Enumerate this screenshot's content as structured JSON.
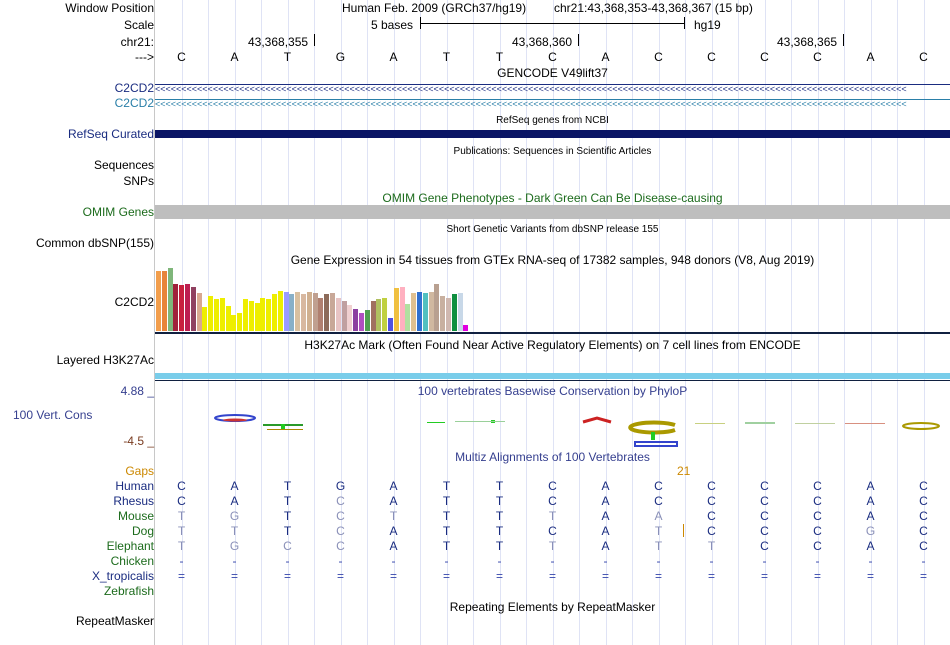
{
  "colors": {
    "gencode_blue": "#1a2c80",
    "gencode_teal": "#2a7fa8",
    "refseq": "#0a1565",
    "omim_label": "#1c6b1c",
    "omim_bar": "#bebebe",
    "h3k27ac": "#79cdea",
    "phylop_label": "#353f8f",
    "phylop_neg": "#7a3c20",
    "gaps": "#cc8800",
    "grid": "#dfe3f5"
  },
  "header": {
    "window_position_label": "Window Position",
    "assembly": "Human Feb. 2009 (GRCh37/hg19)",
    "position": "chr21:43,368,353-43,368,367 (15 bp)",
    "scale_label": "Scale",
    "scale_value": "5 bases",
    "scale_genome": "hg19",
    "chr_label": "chr21:",
    "coords": [
      "43,368,355",
      "43,368,360",
      "43,368,365"
    ],
    "strand_label": "--->"
  },
  "bases": [
    "C",
    "A",
    "T",
    "G",
    "A",
    "T",
    "T",
    "C",
    "A",
    "C",
    "C",
    "C",
    "C",
    "A",
    "C"
  ],
  "tracks": {
    "gencode": {
      "title": "GENCODE V49lift37",
      "gene1": "C2CD2",
      "gene2": "C2CD2",
      "arrows": "<<<<<<<<<<<<<<<<<<<<<<<<<<<<<<<<<<<<<<<<<<<<<<<<<<<<<<<<<<<<<<<<<<<<<<<<<<<<<<<<<<<<<<<<<<<<<<<<<<<<<<<<<<<<<<<<<<<<<<<<<<<<<<<<<<<<<<<<<<<<<<<"
    },
    "refseq": {
      "title": "RefSeq genes from NCBI",
      "label": "RefSeq Curated"
    },
    "publications": {
      "title": "Publications: Sequences in Scientific Articles",
      "label1": "Sequences",
      "label2": "SNPs"
    },
    "omim": {
      "title": "OMIM Gene Phenotypes - Dark Green Can Be Disease-causing",
      "label": "OMIM Genes"
    },
    "dbsnp": {
      "title": "Short Genetic Variants from dbSNP release 155",
      "label": "Common dbSNP(155)"
    },
    "gtex": {
      "title": "Gene Expression in 54 tissues from GTEx RNA-seq of 17382 samples, 948 donors (V8, Aug 2019)",
      "label": "C2CD2",
      "bars": [
        {
          "v": 0.95,
          "c": "#f29e4c"
        },
        {
          "v": 0.95,
          "c": "#e8843a"
        },
        {
          "v": 1.0,
          "c": "#7fb67a"
        },
        {
          "v": 0.75,
          "c": "#a0213a"
        },
        {
          "v": 0.73,
          "c": "#c8203e"
        },
        {
          "v": 0.75,
          "c": "#bd1e50"
        },
        {
          "v": 0.7,
          "c": "#904060"
        },
        {
          "v": 0.6,
          "c": "#d9a890"
        },
        {
          "v": 0.38,
          "c": "#eeee00"
        },
        {
          "v": 0.55,
          "c": "#eeee00"
        },
        {
          "v": 0.5,
          "c": "#eeee00"
        },
        {
          "v": 0.52,
          "c": "#eeee00"
        },
        {
          "v": 0.4,
          "c": "#eeee00"
        },
        {
          "v": 0.25,
          "c": "#eeee00"
        },
        {
          "v": 0.28,
          "c": "#eeee00"
        },
        {
          "v": 0.5,
          "c": "#eeee00"
        },
        {
          "v": 0.48,
          "c": "#eeee00"
        },
        {
          "v": 0.45,
          "c": "#eeee00"
        },
        {
          "v": 0.52,
          "c": "#eeee00"
        },
        {
          "v": 0.5,
          "c": "#eeee00"
        },
        {
          "v": 0.58,
          "c": "#eeee00"
        },
        {
          "v": 0.64,
          "c": "#eeee00"
        },
        {
          "v": 0.62,
          "c": "#9a9aff"
        },
        {
          "v": 0.58,
          "c": "#88b0c8"
        },
        {
          "v": 0.62,
          "c": "#d9c0a0"
        },
        {
          "v": 0.58,
          "c": "#d8b8a0"
        },
        {
          "v": 0.62,
          "c": "#d0b090"
        },
        {
          "v": 0.6,
          "c": "#c0a090"
        },
        {
          "v": 0.52,
          "c": "#b08070"
        },
        {
          "v": 0.58,
          "c": "#8c6b5a"
        },
        {
          "v": 0.6,
          "c": "#c8a898"
        },
        {
          "v": 0.52,
          "c": "#e8c4c4"
        },
        {
          "v": 0.48,
          "c": "#c0a0a0"
        },
        {
          "v": 0.42,
          "c": "#f0d0d0"
        },
        {
          "v": 0.35,
          "c": "#8c40a0"
        },
        {
          "v": 0.28,
          "c": "#b050c0"
        },
        {
          "v": 0.33,
          "c": "#50a050"
        },
        {
          "v": 0.48,
          "c": "#a07060"
        },
        {
          "v": 0.5,
          "c": "#b0c060"
        },
        {
          "v": 0.52,
          "c": "#c0d040"
        },
        {
          "v": 0.2,
          "c": "#5050e0"
        },
        {
          "v": 0.68,
          "c": "#f0c040"
        },
        {
          "v": 0.7,
          "c": "#ffb0c0"
        },
        {
          "v": 0.43,
          "c": "#b0e0a0"
        },
        {
          "v": 0.6,
          "c": "#e0c090"
        },
        {
          "v": 0.62,
          "c": "#3070d0"
        },
        {
          "v": 0.6,
          "c": "#50c0c0"
        },
        {
          "v": 0.62,
          "c": "#d0b8a0"
        },
        {
          "v": 0.75,
          "c": "#b8a090"
        },
        {
          "v": 0.55,
          "c": "#c8b0a0"
        },
        {
          "v": 0.52,
          "c": "#d0b8b0"
        },
        {
          "v": 0.58,
          "c": "#109040"
        },
        {
          "v": 0.6,
          "c": "#c8d8e8"
        },
        {
          "v": 0.1,
          "c": "#e000e0"
        }
      ]
    },
    "h3k27ac": {
      "title": "H3K27Ac Mark (Often Found Near Active Regulatory Elements) on 7 cell lines from ENCODE",
      "label": "Layered H3K27Ac"
    },
    "phylop": {
      "title": "100 vertebrates Basewise Conservation by PhyloP",
      "label": "100 Vert. Cons",
      "max": "4.88 _",
      "min": "-4.5 _"
    },
    "multiz": {
      "title": "Multiz Alignments of 100 Vertebrates",
      "gaps_label": "Gaps",
      "gap_count": "21",
      "species": [
        {
          "name": "Human",
          "seq": [
            "C",
            "A",
            "T",
            "G",
            "A",
            "T",
            "T",
            "C",
            "A",
            "C",
            "C",
            "C",
            "C",
            "A",
            "C"
          ]
        },
        {
          "name": "Rhesus",
          "seq": [
            "C",
            "A",
            "T",
            "C",
            "A",
            "T",
            "T",
            "C",
            "A",
            "C",
            "C",
            "C",
            "C",
            "A",
            "C"
          ]
        },
        {
          "name": "Mouse",
          "seq": [
            "T",
            "G",
            "T",
            "C",
            "T",
            "T",
            "T",
            "T",
            "A",
            "A",
            "C",
            "C",
            "C",
            "A",
            "C"
          ]
        },
        {
          "name": "Dog",
          "seq": [
            "T",
            "T",
            "T",
            "C",
            "A",
            "T",
            "T",
            "C",
            "A",
            "T",
            "C",
            "C",
            "C",
            "G",
            "C"
          ]
        },
        {
          "name": "Elephant",
          "seq": [
            "T",
            "G",
            "C",
            "C",
            "A",
            "T",
            "T",
            "T",
            "A",
            "T",
            "T",
            "C",
            "C",
            "A",
            "C"
          ]
        },
        {
          "name": "Chicken",
          "seq": [
            "-",
            "-",
            "-",
            "-",
            "-",
            "-",
            "-",
            "-",
            "-",
            "-",
            "-",
            "-",
            "-",
            "-",
            "-"
          ]
        },
        {
          "name": "X_tropicalis",
          "seq": [
            "=",
            "=",
            "=",
            "=",
            "=",
            "=",
            "=",
            "=",
            "=",
            "=",
            "=",
            "=",
            "=",
            "=",
            "="
          ]
        },
        {
          "name": "Zebrafish",
          "seq": []
        }
      ]
    },
    "repeatmasker": {
      "title": "Repeating Elements by RepeatMasker",
      "label": "RepeatMasker"
    }
  }
}
